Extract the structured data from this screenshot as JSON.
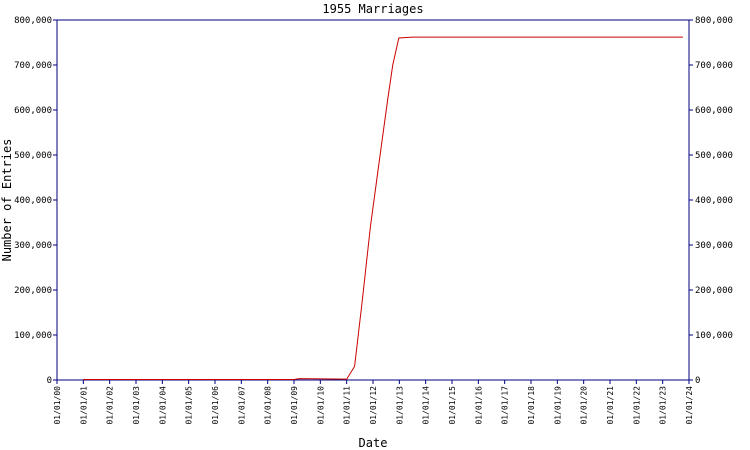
{
  "chart_data": {
    "type": "line",
    "title": "1955 Marriages",
    "x_label": "Date",
    "y_label": "Number of Entries",
    "x": [
      1,
      9,
      9.2,
      11,
      11.3,
      11.6,
      11.9,
      12.2,
      12.55,
      12.75,
      12.98,
      13.5,
      23.77
    ],
    "series": [
      {
        "name": "Entries",
        "color": "#cc0000",
        "values": [
          1000,
          1000,
          3000,
          2000,
          30000,
          180000,
          340000,
          470000,
          620000,
          700000,
          760000,
          762000,
          762000
        ]
      }
    ],
    "xlim": [
      0,
      24
    ],
    "xticks": [
      {
        "value": 0,
        "label": "01/01/00"
      },
      {
        "value": 1,
        "label": "01/01/01"
      },
      {
        "value": 2,
        "label": "01/01/02"
      },
      {
        "value": 3,
        "label": "01/01/03"
      },
      {
        "value": 4,
        "label": "01/01/04"
      },
      {
        "value": 5,
        "label": "01/01/05"
      },
      {
        "value": 6,
        "label": "01/01/06"
      },
      {
        "value": 7,
        "label": "01/01/07"
      },
      {
        "value": 8,
        "label": "01/01/08"
      },
      {
        "value": 9,
        "label": "01/01/09"
      },
      {
        "value": 10,
        "label": "01/01/10"
      },
      {
        "value": 11,
        "label": "01/01/11"
      },
      {
        "value": 12,
        "label": "01/01/12"
      },
      {
        "value": 13,
        "label": "01/01/13"
      },
      {
        "value": 14,
        "label": "01/01/14"
      },
      {
        "value": 15,
        "label": "01/01/15"
      },
      {
        "value": 16,
        "label": "01/01/16"
      },
      {
        "value": 17,
        "label": "01/01/17"
      },
      {
        "value": 18,
        "label": "01/01/18"
      },
      {
        "value": 19,
        "label": "01/01/19"
      },
      {
        "value": 20,
        "label": "01/01/20"
      },
      {
        "value": 21,
        "label": "01/01/21"
      },
      {
        "value": 22,
        "label": "01/01/22"
      },
      {
        "value": 23,
        "label": "01/01/23"
      },
      {
        "value": 24,
        "label": "01/01/24"
      }
    ],
    "ylim": [
      0,
      800000
    ],
    "yticks": [
      0,
      {
        "value": 100000,
        "label": "100,000"
      },
      {
        "value": 200000,
        "label": "200,000"
      },
      {
        "value": 300000,
        "label": "300,000"
      },
      {
        "value": 400000,
        "label": "400,000"
      },
      {
        "value": 500000,
        "label": "500,000"
      },
      {
        "value": 600000,
        "label": "600,000"
      },
      {
        "value": 700000,
        "label": "700,000"
      },
      {
        "value": 800000,
        "label": "800,000"
      }
    ],
    "axis_color": "#000080"
  }
}
